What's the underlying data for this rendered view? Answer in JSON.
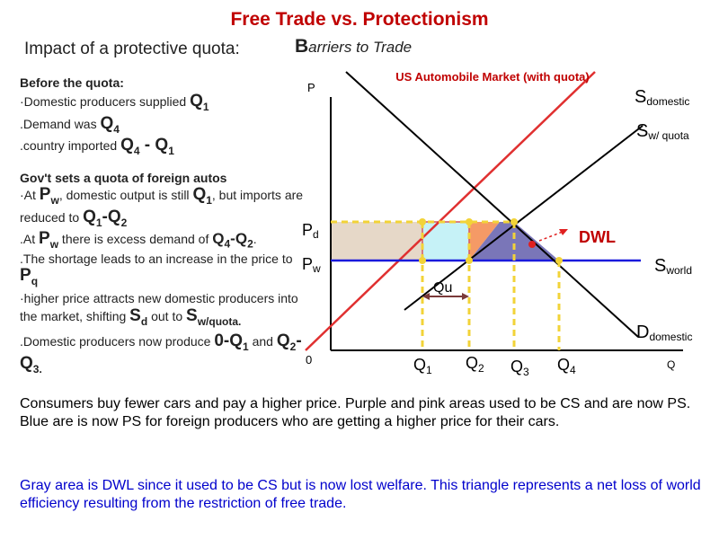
{
  "title": "Free Trade vs. Protectionism",
  "impact_heading": "Impact of a protective quota:",
  "barriers_first": "B",
  "barriers_rest": "arriers to Trade",
  "left": {
    "before": "Before the quota:",
    "l1a": "·Domestic producers supplied ",
    "l1q": "Q",
    "l1s": "1",
    "l2a": ".Demand was ",
    "l2q": "Q",
    "l2s": "4",
    "l3a": ".country imported ",
    "l3q1": "Q",
    "l3s1": "4",
    "l3dash": " - ",
    "l3q2": "Q",
    "l3s2": "1",
    "gov": "Gov't sets a quota of foreign autos",
    "l4a": "·At ",
    "l4p": "P",
    "l4ps": "w",
    "l4b": ", domestic output is still ",
    "l4q": "Q",
    "l4qs": "1",
    "l4c": ", but imports are reduced to ",
    "l4q2": "Q",
    "l4q2s": "1",
    "l4dash": "-",
    "l4q3": "Q",
    "l4q3s": "2",
    "l5a": ".At ",
    "l5p": "P",
    "l5ps": "w",
    "l5b": " there is excess demand of ",
    "l5q1": "Q",
    "l5q1s": "4",
    "l5dash": "-",
    "l5q2": "Q",
    "l5q2s": "2",
    "l5dot": ".",
    "l6a": ".The shortage leads to an increase in the price to ",
    "l6p": "P",
    "l6ps": "q",
    "l7a": "·higher price attracts new domestic producers into the market, shifting ",
    "l7s": "S",
    "l7ss": "d",
    "l7b": " out to ",
    "l7s2": "S",
    "l7s2s": "w/quota.",
    "l8a": ".Domestic producers now produce ",
    "l8b": "0-Q",
    "l8bs": "1",
    "l8c": " and ",
    "l8d": "Q",
    "l8ds": "2",
    "l8e": "-Q",
    "l8es": "3.",
    "l8f": ""
  },
  "graph": {
    "title": "US Automobile Market (with quota)",
    "p_axis": "P",
    "origin": "0",
    "q_axis": "Q",
    "pd": "P",
    "pd_sub": "d",
    "pw": "P",
    "pw_sub": "w",
    "qu": "Qu",
    "dwl": "DWL",
    "s_domestic": "S",
    "s_domestic_sub": "domestic",
    "s_quota": "S",
    "s_quota_sub": "w/ quota",
    "s_world": "S",
    "s_world_sub": "world",
    "d_domestic": "D",
    "d_domestic_sub": "domestic",
    "q1": "Q",
    "q1s": "1",
    "q2": "Q",
    "q2s": "2",
    "q3": "Q",
    "q3s": "3",
    "q4": "Q",
    "q4s": "4",
    "colors": {
      "title": "#c00000",
      "s_domestic": "#e03030",
      "world_line": "#1a1adc",
      "quota_line": "#000000",
      "demand": "#000000",
      "dashes": "#f2d338",
      "beige": "#e6d8c8",
      "cyan": "#c6f2f7",
      "orange": "#f59a66",
      "purple": "#7a76b8"
    }
  },
  "bottom": {
    "p1": "Consumers buy fewer cars and pay a higher price. Purple and pink areas used to be CS and are now PS. Blue are is now PS for foreign producers who are getting a higher price for their cars.",
    "p2": "Gray area is DWL since it used to be CS but is now lost welfare. This triangle represents a net loss of world efficiency resulting from the restriction of free trade."
  }
}
